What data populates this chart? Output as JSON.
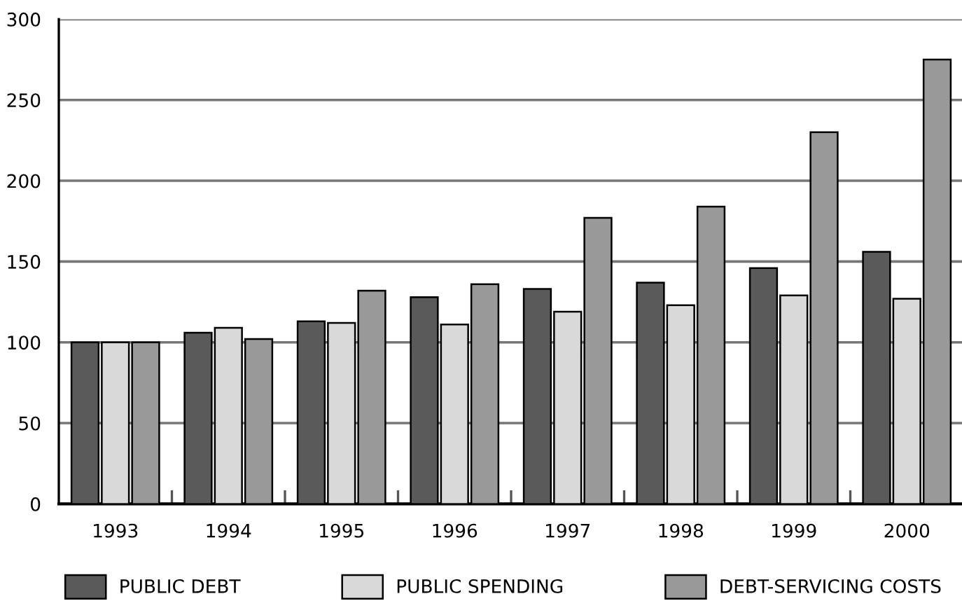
{
  "chart_data": {
    "type": "bar",
    "categories": [
      "1993",
      "1994",
      "1995",
      "1996",
      "1997",
      "1998",
      "1999",
      "2000"
    ],
    "series": [
      {
        "name": "PUBLIC DEBT",
        "color": "#5a5a5a",
        "values": [
          100,
          106,
          113,
          128,
          133,
          137,
          146,
          156
        ]
      },
      {
        "name": "PUBLIC SPENDING",
        "color": "#d9d9d9",
        "values": [
          100,
          109,
          112,
          111,
          119,
          123,
          129,
          127
        ]
      },
      {
        "name": "DEBT-SERVICING COSTS",
        "color": "#999999",
        "values": [
          100,
          102,
          132,
          136,
          177,
          184,
          230,
          275
        ]
      }
    ],
    "ylim": [
      0,
      300
    ],
    "yticks": [
      0,
      50,
      100,
      150,
      200,
      250,
      300
    ],
    "grid": "y",
    "legend": "bottom"
  }
}
